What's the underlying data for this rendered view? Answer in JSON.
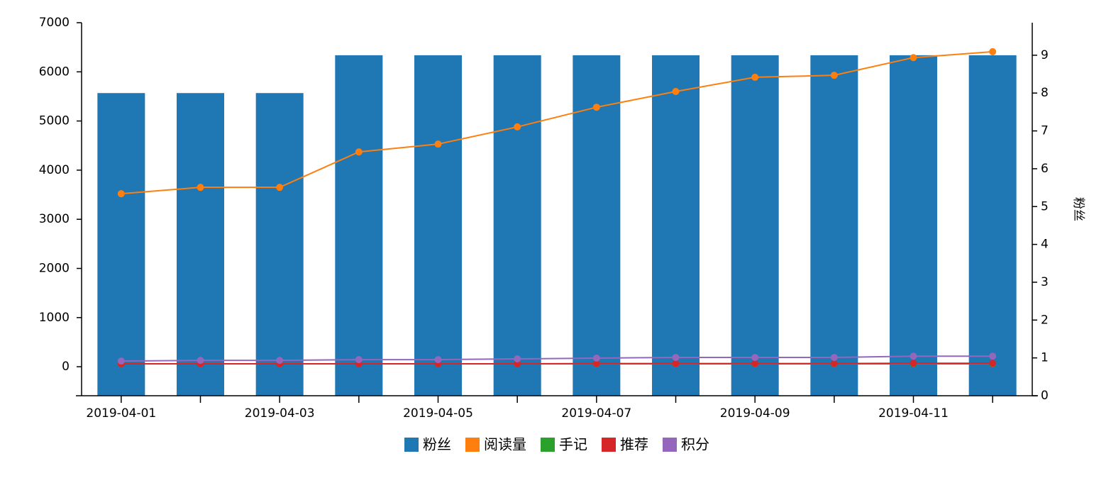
{
  "chart_data": {
    "type": "bar-line",
    "categories": [
      "2019-04-01",
      null,
      "2019-04-03",
      null,
      "2019-04-05",
      null,
      "2019-04-07",
      null,
      "2019-04-09",
      null,
      "2019-04-11",
      null
    ],
    "series": [
      {
        "name": "粉丝",
        "type": "bar",
        "axis": "y2",
        "color": "#1f77b4",
        "values": [
          8,
          8,
          8,
          9,
          9,
          9,
          9,
          9,
          9,
          9,
          9,
          9
        ]
      },
      {
        "name": "阅读量",
        "type": "line",
        "axis": "y",
        "color": "#ff7f0e",
        "values": [
          3520,
          3650,
          3650,
          4370,
          4530,
          4880,
          5280,
          5600,
          5890,
          5930,
          6290,
          6410
        ]
      },
      {
        "name": "手记",
        "type": "line",
        "axis": "y",
        "color": "#2ca02c",
        "values": [
          60,
          60,
          60,
          60,
          60,
          60,
          60,
          60,
          60,
          60,
          60,
          60
        ]
      },
      {
        "name": "推荐",
        "type": "line",
        "axis": "y",
        "color": "#d62728",
        "values": [
          60,
          60,
          60,
          60,
          60,
          60,
          65,
          65,
          65,
          65,
          70,
          70
        ]
      },
      {
        "name": "积分",
        "type": "line",
        "axis": "y",
        "color": "#9467bd",
        "values": [
          115,
          130,
          130,
          145,
          145,
          160,
          175,
          190,
          190,
          190,
          215,
          215
        ]
      }
    ],
    "ylim": [
      -590,
      7000
    ],
    "yticks": [
      0,
      1000,
      2000,
      3000,
      4000,
      5000,
      6000,
      7000
    ],
    "y2lim": [
      0,
      9.86
    ],
    "y2ticks": [
      0,
      1,
      2,
      3,
      4,
      5,
      6,
      7,
      8,
      9
    ],
    "y2label": "粉丝"
  }
}
